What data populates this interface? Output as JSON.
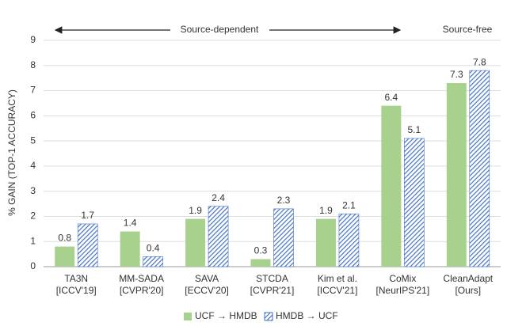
{
  "chart_data": {
    "type": "bar",
    "y_label": "% GAIN (TOP-1 ACCURACY)",
    "annotations": [
      "Source-dependent",
      "Source-free"
    ],
    "categories": [
      [
        "TA3N",
        "[ICCV'19]"
      ],
      [
        "MM-SADA",
        "[CVPR'20]"
      ],
      [
        "SAVA",
        "[ECCV'20]"
      ],
      [
        "STCDA",
        "[CVPR'21]"
      ],
      [
        "Kim et al.",
        "[ICCV'21]"
      ],
      [
        "CoMix",
        "[NeurIPS'21]"
      ],
      [
        "CleanAdapt",
        "[Ours]"
      ]
    ],
    "series": [
      {
        "name": "UCF → HMDB",
        "color": "#a9d18e",
        "values": [
          0.8,
          1.4,
          1.9,
          0.3,
          1.9,
          6.4,
          7.3
        ]
      },
      {
        "name": "HMDB → UCF",
        "color": "#4472c4",
        "pattern": "hatch",
        "values": [
          1.7,
          0.4,
          2.4,
          2.3,
          2.1,
          5.1,
          7.8
        ]
      }
    ],
    "ylim": [
      0,
      9
    ],
    "yticks": [
      0,
      1,
      2,
      3,
      4,
      5,
      6,
      7,
      8,
      9
    ],
    "grid": true
  }
}
